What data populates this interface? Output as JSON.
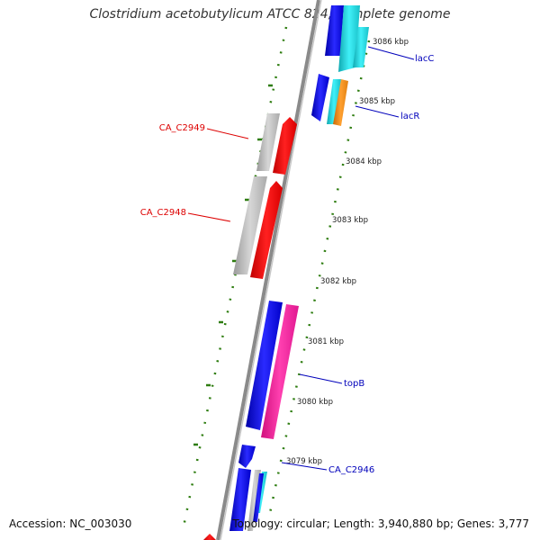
{
  "title": "Clostridium acetobutylicum ATCC 824, complete genome",
  "accession_text": "Accession: NC_003030",
  "topology_text": "Topology: circular; Length: 3,940,880 bp; Genes: 3,777",
  "colors": {
    "backbone": "#8a8a8a",
    "tick": "#2e7d10",
    "blue": "#1010e0",
    "cyan": "#20d0d8",
    "orange": "#f0901e",
    "gray": "#b8b8b8",
    "red": "#ff0000",
    "pink": "#ff1aa0",
    "label_red": "#dd0000",
    "label_blue": "#0000bb"
  },
  "scale_labels": [
    "3086 kbp",
    "3085 kbp",
    "3084 kbp",
    "3083 kbp",
    "3082 kbp",
    "3081 kbp",
    "3080 kbp",
    "3079 kbp"
  ],
  "feature_labels": {
    "lacC": "lacC",
    "lacR": "lacR",
    "CA_C2949": "CA_C2949",
    "CA_C2948": "CA_C2948",
    "topB": "topB",
    "CA_C2946": "CA_C2946"
  }
}
